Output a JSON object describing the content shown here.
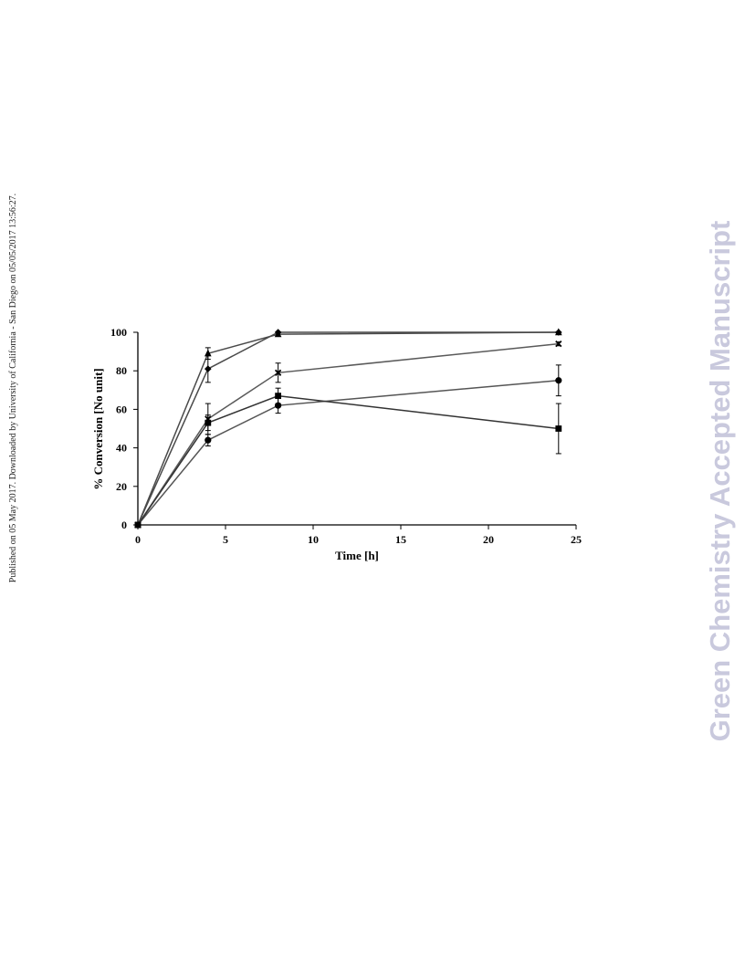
{
  "side_note": "Published on 05 May 2017. Downloaded by University of California - San Diego on 05/05/2017 13:56:27.",
  "watermark": "Green Chemistry Accepted Manuscript",
  "chart_data": {
    "type": "line",
    "xlabel": "Time [h]",
    "ylabel": "% Conversion [No unit]",
    "xlim": [
      0,
      25
    ],
    "ylim": [
      0,
      100
    ],
    "xticks": [
      0,
      5,
      10,
      15,
      20,
      25
    ],
    "yticks": [
      0,
      20,
      40,
      60,
      80,
      100
    ],
    "grid": false,
    "series": [
      {
        "marker": "triangle",
        "color": "#4a4a4a",
        "points": [
          [
            0,
            0
          ],
          [
            4,
            89
          ],
          [
            8,
            99
          ],
          [
            24,
            100
          ]
        ],
        "err": [
          0,
          3,
          1,
          0
        ]
      },
      {
        "marker": "diamond",
        "color": "#4a4a4a",
        "points": [
          [
            0,
            0
          ],
          [
            4,
            81
          ],
          [
            8,
            100
          ],
          [
            24,
            100
          ]
        ],
        "err": [
          0,
          7,
          0,
          0
        ]
      },
      {
        "marker": "x",
        "color": "#5a5a5a",
        "points": [
          [
            0,
            0
          ],
          [
            4,
            55
          ],
          [
            8,
            79
          ],
          [
            24,
            94
          ]
        ],
        "err": [
          0,
          8,
          5,
          1
        ]
      },
      {
        "marker": "circle",
        "color": "#555555",
        "points": [
          [
            0,
            0
          ],
          [
            4,
            44
          ],
          [
            8,
            62
          ],
          [
            24,
            75
          ]
        ],
        "err": [
          0,
          3,
          4,
          8
        ]
      },
      {
        "marker": "square",
        "color": "#333333",
        "points": [
          [
            0,
            0
          ],
          [
            4,
            53
          ],
          [
            8,
            67
          ],
          [
            24,
            50
          ]
        ],
        "err": [
          0,
          4,
          4,
          13
        ]
      }
    ]
  }
}
